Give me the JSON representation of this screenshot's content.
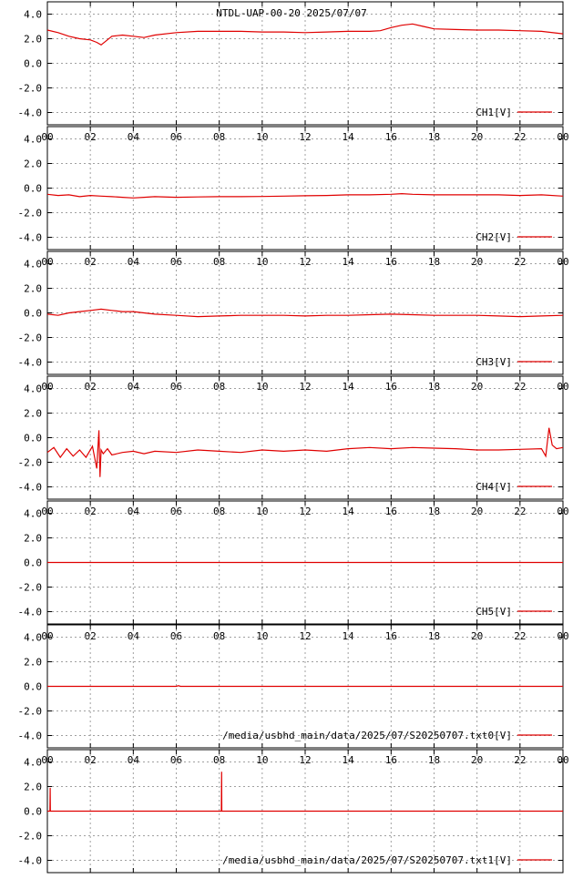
{
  "title": "NTDL-UAP-00-20 2025/07/07",
  "colors": {
    "series": "#e00000",
    "grid": "#a0a0a0",
    "axis": "#000000",
    "background": "#ffffff"
  },
  "chart_data": {
    "type": "line",
    "grid": true,
    "legend_position": "bottom-right",
    "x_tick_labels": [
      "00",
      "02",
      "04",
      "06",
      "08",
      "10",
      "12",
      "14",
      "16",
      "18",
      "20",
      "22",
      "00"
    ],
    "xlim": [
      0,
      24
    ],
    "y_tick_labels": [
      "4.0",
      "2.0",
      "0.0",
      "-2.0",
      "-4.0"
    ],
    "ylim": [
      -5,
      5
    ],
    "panels": [
      {
        "name": "CH1[V]",
        "x": [
          0,
          0.5,
          1.0,
          1.5,
          2.0,
          2.3,
          2.5,
          3.0,
          3.5,
          4.0,
          4.5,
          5.0,
          6.0,
          7.0,
          8.0,
          9.0,
          10.0,
          11.0,
          12.0,
          13.0,
          14.0,
          15.0,
          15.5,
          16.0,
          16.5,
          17.0,
          17.5,
          18.0,
          19.0,
          20.0,
          21.0,
          22.0,
          23.0,
          24.0
        ],
        "y": [
          2.7,
          2.5,
          2.2,
          2.0,
          1.9,
          1.7,
          1.5,
          2.2,
          2.3,
          2.2,
          2.1,
          2.3,
          2.5,
          2.6,
          2.6,
          2.6,
          2.55,
          2.55,
          2.5,
          2.55,
          2.6,
          2.6,
          2.65,
          2.9,
          3.1,
          3.2,
          3.0,
          2.8,
          2.75,
          2.7,
          2.7,
          2.65,
          2.6,
          2.4
        ]
      },
      {
        "name": "CH2[V]",
        "x": [
          0,
          0.5,
          1.0,
          1.5,
          2.0,
          2.5,
          3.0,
          3.5,
          4.0,
          4.5,
          5.0,
          6.0,
          7.0,
          8.0,
          9.0,
          10.0,
          11.0,
          12.0,
          13.0,
          14.0,
          15.0,
          16.0,
          16.5,
          17.0,
          18.0,
          19.0,
          20.0,
          21.0,
          22.0,
          23.0,
          24.0
        ],
        "y": [
          -0.5,
          -0.6,
          -0.55,
          -0.7,
          -0.6,
          -0.65,
          -0.7,
          -0.75,
          -0.8,
          -0.75,
          -0.7,
          -0.75,
          -0.72,
          -0.7,
          -0.7,
          -0.68,
          -0.65,
          -0.62,
          -0.6,
          -0.55,
          -0.55,
          -0.5,
          -0.45,
          -0.5,
          -0.55,
          -0.55,
          -0.55,
          -0.55,
          -0.6,
          -0.55,
          -0.65
        ]
      },
      {
        "name": "CH3[V]",
        "x": [
          0,
          0.5,
          1.0,
          1.5,
          2.0,
          2.5,
          3.0,
          3.5,
          4.0,
          4.5,
          5.0,
          6.0,
          7.0,
          8.0,
          9.0,
          10.0,
          11.0,
          12.0,
          13.0,
          14.0,
          15.0,
          16.0,
          17.0,
          18.0,
          19.0,
          20.0,
          21.0,
          22.0,
          23.0,
          24.0
        ],
        "y": [
          -0.1,
          -0.2,
          0.0,
          0.1,
          0.2,
          0.3,
          0.2,
          0.1,
          0.1,
          0.0,
          -0.1,
          -0.2,
          -0.3,
          -0.25,
          -0.2,
          -0.2,
          -0.2,
          -0.25,
          -0.2,
          -0.2,
          -0.15,
          -0.1,
          -0.15,
          -0.2,
          -0.2,
          -0.2,
          -0.25,
          -0.3,
          -0.25,
          -0.2
        ]
      },
      {
        "name": "CH4[V]",
        "x": [
          0,
          0.3,
          0.6,
          0.9,
          1.2,
          1.5,
          1.8,
          2.1,
          2.3,
          2.4,
          2.45,
          2.5,
          2.6,
          2.8,
          3.0,
          3.5,
          4.0,
          4.5,
          5.0,
          6.0,
          7.0,
          8.0,
          9.0,
          10.0,
          11.0,
          12.0,
          13.0,
          14.0,
          15.0,
          16.0,
          17.0,
          18.0,
          19.0,
          20.0,
          21.0,
          22.0,
          23.0,
          23.2,
          23.35,
          23.5,
          23.7,
          24.0
        ],
        "y": [
          -1.2,
          -0.8,
          -1.6,
          -0.9,
          -1.5,
          -1.0,
          -1.6,
          -0.7,
          -2.5,
          0.6,
          -3.2,
          -1.0,
          -1.3,
          -0.9,
          -1.4,
          -1.2,
          -1.1,
          -1.3,
          -1.1,
          -1.2,
          -1.0,
          -1.1,
          -1.2,
          -1.0,
          -1.1,
          -1.0,
          -1.1,
          -0.9,
          -0.8,
          -0.9,
          -0.8,
          -0.85,
          -0.9,
          -1.0,
          -1.0,
          -0.95,
          -0.9,
          -1.5,
          0.8,
          -0.6,
          -0.9,
          -0.8
        ]
      },
      {
        "name": "CH5[V]",
        "x": [
          0,
          24
        ],
        "y": [
          0.0,
          0.0
        ]
      },
      {
        "name": "/media/usbhd_main/data/2025/07/S20250707.txt0[V]",
        "x": [
          0,
          6.0,
          6.1,
          6.2,
          24
        ],
        "y": [
          0.0,
          0.0,
          0.05,
          0.0,
          0.0
        ]
      },
      {
        "name": "/media/usbhd_main/data/2025/07/S20250707.txt1[V]",
        "x": [
          0,
          0.12,
          0.13,
          0.14,
          8.1,
          8.11,
          8.12,
          24
        ],
        "y": [
          0.0,
          0.0,
          1.9,
          0.0,
          0.0,
          3.2,
          0.0,
          0.0
        ]
      }
    ]
  }
}
